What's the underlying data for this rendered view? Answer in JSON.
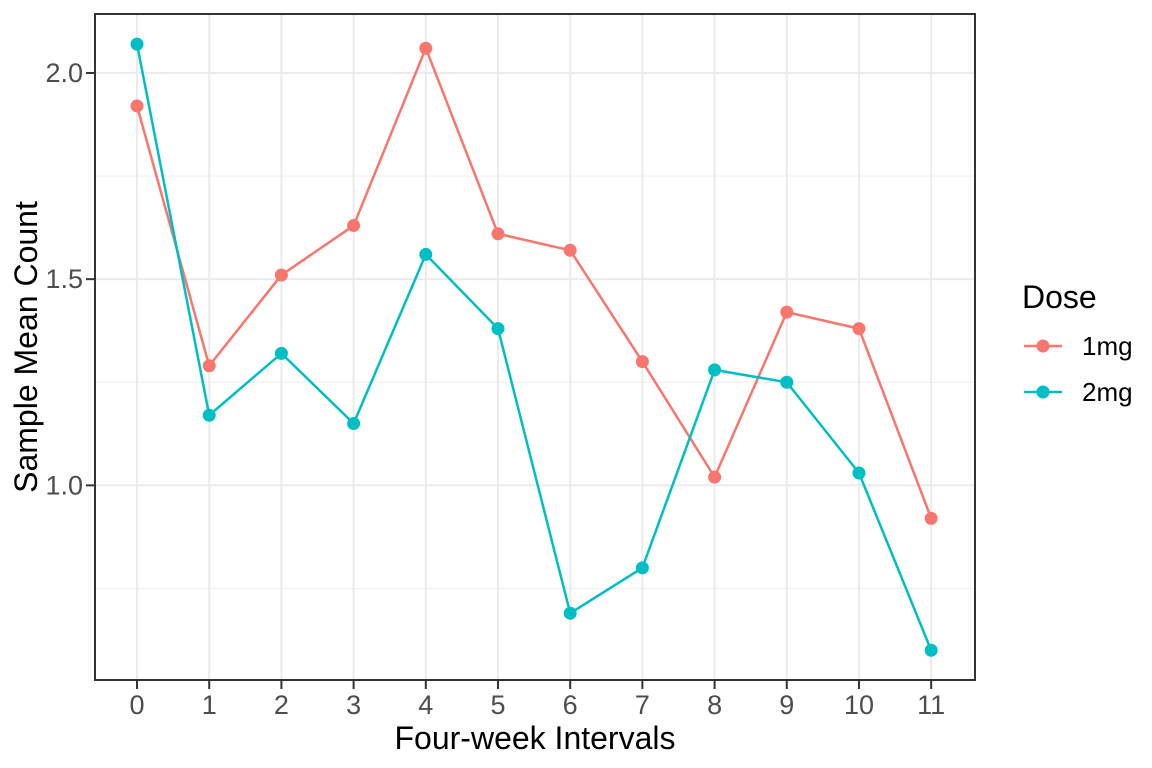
{
  "chart_data": {
    "type": "line",
    "title": "",
    "xlabel": "Four-week Intervals",
    "ylabel": "Sample Mean Count",
    "legend_title": "Dose",
    "legend_position": "right",
    "grid": true,
    "x": [
      0,
      1,
      2,
      3,
      4,
      5,
      6,
      7,
      8,
      9,
      10,
      11
    ],
    "x_tick_labels": [
      "0",
      "1",
      "2",
      "3",
      "4",
      "5",
      "6",
      "7",
      "8",
      "9",
      "10",
      "11"
    ],
    "y_ticks": [
      1.0,
      1.5,
      2.0
    ],
    "y_tick_labels": [
      "1.0",
      "1.5",
      "2.0"
    ],
    "y_minor_ticks": [
      0.75,
      1.25,
      1.75
    ],
    "xlim": [
      -0.582,
      11.607
    ],
    "ylim": [
      0.528,
      2.143
    ],
    "series": [
      {
        "name": "1mg",
        "color": "#F8766D",
        "values": [
          1.92,
          1.29,
          1.51,
          1.63,
          2.06,
          1.61,
          1.57,
          1.3,
          1.02,
          1.42,
          1.38,
          0.92
        ]
      },
      {
        "name": "2mg",
        "color": "#00BFC4",
        "values": [
          2.07,
          1.17,
          1.32,
          1.15,
          1.56,
          1.38,
          0.69,
          0.8,
          1.28,
          1.25,
          1.03,
          0.6
        ]
      }
    ],
    "colors": {
      "grid_major": "#EBEBEB",
      "grid_minor": "#F0F0F0",
      "panel_border": "#333333",
      "tick_mark": "#333333",
      "tick_label": "#4D4D4D",
      "axis_title": "#000000",
      "background": "#FFFFFF"
    }
  }
}
